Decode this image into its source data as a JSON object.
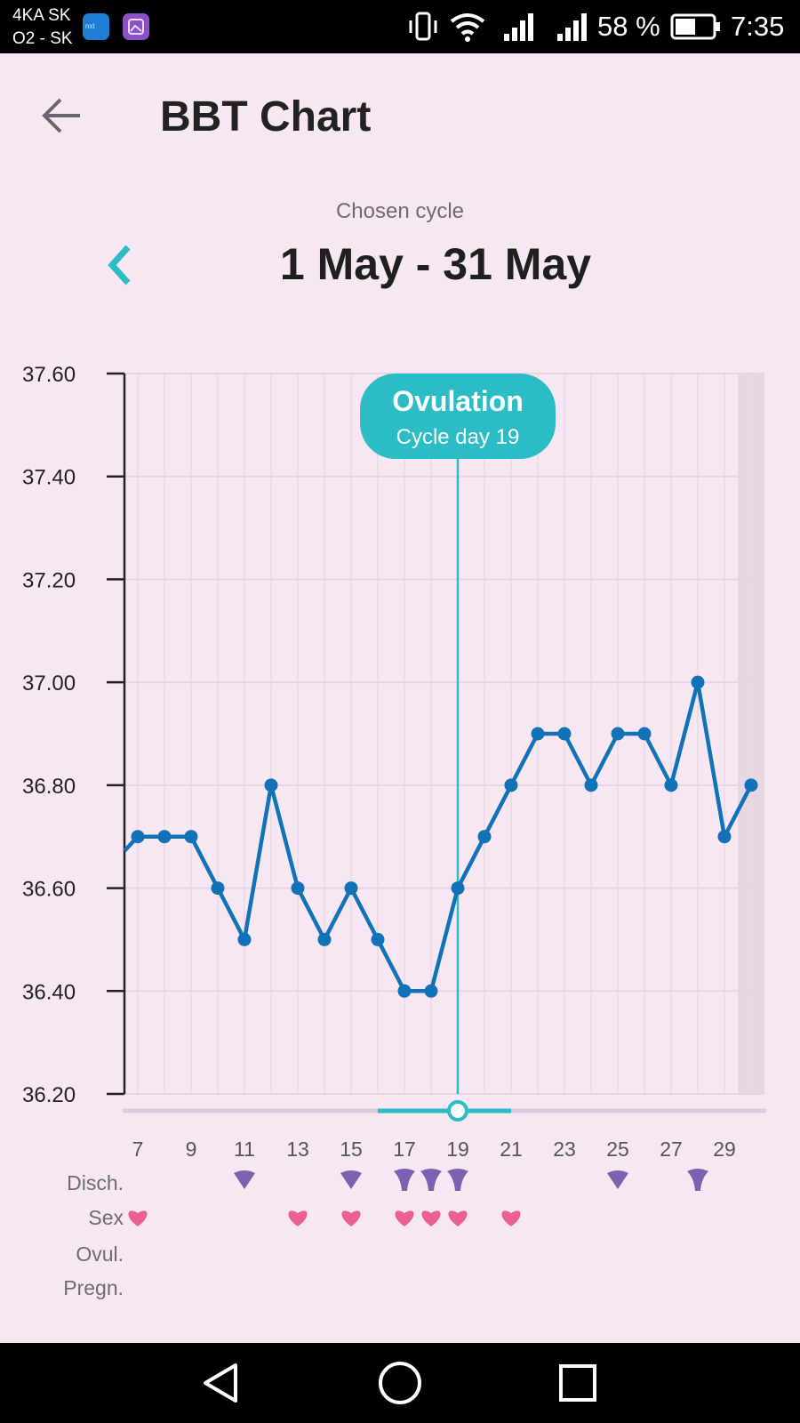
{
  "status_bar": {
    "carrier_1": "4KA SK",
    "carrier_2": "O2 - SK",
    "battery_percent": "58 %",
    "time": "7:35",
    "icons": [
      "app-icon",
      "gallery-icon",
      "vibrate-icon",
      "wifi-icon",
      "signal-icon",
      "signal-icon",
      "battery-icon"
    ]
  },
  "header": {
    "back_icon": "arrow-left-icon",
    "title": "BBT Chart"
  },
  "cycle": {
    "caption": "Chosen cycle",
    "range": "1 May - 31 May",
    "prev_icon": "chevron-left-icon"
  },
  "chart_data": {
    "type": "line",
    "ylim": [
      36.2,
      37.6
    ],
    "y_ticks": [
      "37.60",
      "37.40",
      "37.20",
      "37.00",
      "36.80",
      "36.60",
      "36.40",
      "36.20"
    ],
    "x_tick_labels": [
      "7",
      "9",
      "11",
      "13",
      "15",
      "17",
      "19",
      "21",
      "23",
      "25",
      "27",
      "29"
    ],
    "x_visible_range": [
      6.5,
      30.5
    ],
    "series": [
      {
        "color": "#1172b8",
        "x": [
          7,
          8,
          9,
          10,
          11,
          12,
          13,
          14,
          15,
          16,
          17,
          18,
          19,
          20,
          21,
          22,
          23,
          24,
          25,
          26,
          27,
          28,
          29,
          30
        ],
        "y": [
          36.7,
          36.7,
          36.7,
          36.6,
          36.5,
          36.8,
          36.6,
          36.5,
          36.6,
          36.5,
          36.4,
          36.4,
          36.6,
          36.7,
          36.8,
          36.9,
          36.9,
          36.8,
          36.9,
          36.9,
          36.8,
          37.0,
          36.7,
          36.8
        ]
      }
    ],
    "ovulation": {
      "day": 19,
      "title": "Ovulation",
      "subtitle": "Cycle day 19",
      "color": "#2bbcc6"
    },
    "highlight_day": 30,
    "scrollbar_selected_days": [
      16,
      21
    ]
  },
  "markers": {
    "labels": [
      "Disch.",
      "Sex",
      "Ovul.",
      "Pregn."
    ],
    "discharge": [
      {
        "day": 11,
        "kind": "drop"
      },
      {
        "day": 15,
        "kind": "drop"
      },
      {
        "day": 17,
        "kind": "fluid"
      },
      {
        "day": 18,
        "kind": "fluid"
      },
      {
        "day": 19,
        "kind": "fluid"
      },
      {
        "day": 25,
        "kind": "drop"
      },
      {
        "day": 28,
        "kind": "fluid"
      }
    ],
    "sex_days": [
      7,
      13,
      15,
      17,
      18,
      19,
      21
    ],
    "discharge_color": "#7b62b0",
    "sex_color": "#ec5f93"
  },
  "nav": {
    "back_icon": "triangle-back-icon",
    "home_icon": "circle-home-icon",
    "recents_icon": "square-recents-icon"
  }
}
